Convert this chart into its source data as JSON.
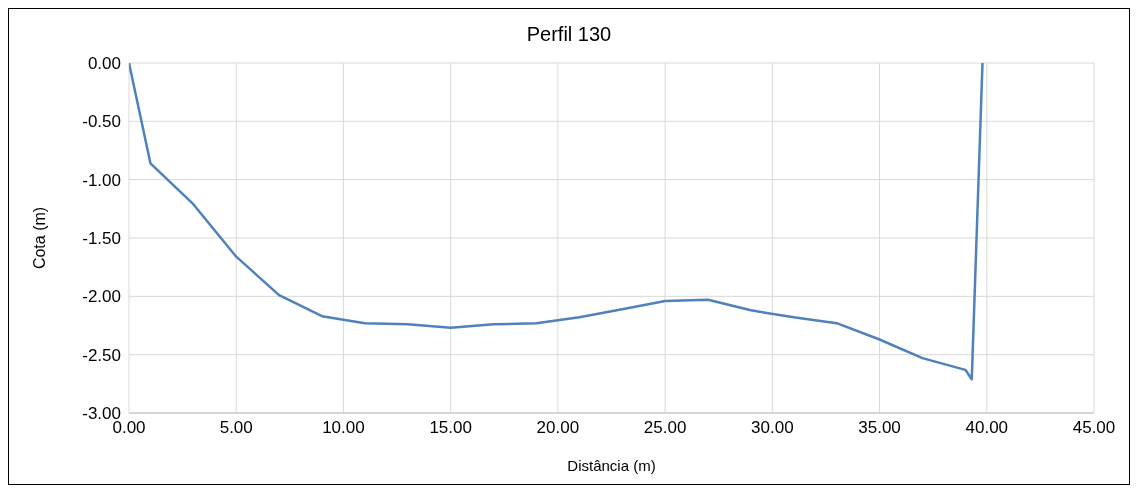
{
  "chart_data": {
    "type": "line",
    "title": "Perfil 130",
    "xlabel": "Distância (m)",
    "ylabel": "Cota (m)",
    "x": [
      0,
      1,
      3,
      5,
      7,
      9,
      11,
      13,
      15,
      17,
      19,
      21,
      23,
      25,
      27,
      29,
      31,
      33,
      35,
      37,
      39,
      39.3,
      39.8
    ],
    "series": [
      {
        "color": "#4f81bd",
        "values": [
          0,
          -0.86,
          -1.21,
          -1.66,
          -1.99,
          -2.17,
          -2.23,
          -2.24,
          -2.27,
          -2.24,
          -2.23,
          -2.18,
          -2.11,
          -2.04,
          -2.03,
          -2.12,
          -2.18,
          -2.23,
          -2.37,
          -2.53,
          -2.63,
          -2.71,
          0
        ]
      }
    ],
    "xlim": [
      0,
      45
    ],
    "xticks": [
      {
        "value": 0,
        "label": "0.00"
      },
      {
        "value": 5,
        "label": "5.00"
      },
      {
        "value": 10,
        "label": "10.00"
      },
      {
        "value": 15,
        "label": "15.00"
      },
      {
        "value": 20,
        "label": "20.00"
      },
      {
        "value": 25,
        "label": "25.00"
      },
      {
        "value": 30,
        "label": "30.00"
      },
      {
        "value": 35,
        "label": "35.00"
      },
      {
        "value": 40,
        "label": "40.00"
      },
      {
        "value": 45,
        "label": "45.00"
      }
    ],
    "ylim": [
      -3,
      0
    ],
    "yticks": [
      {
        "value": -3,
        "label": "-3.00"
      },
      {
        "value": -2.5,
        "label": "-2.50"
      },
      {
        "value": -2,
        "label": "-2.00"
      },
      {
        "value": -1.5,
        "label": "-1.50"
      },
      {
        "value": -1,
        "label": "-1.00"
      },
      {
        "value": -0.5,
        "label": "-0.50"
      },
      {
        "value": 0,
        "label": "0.00"
      }
    ],
    "grid": true,
    "marker": "none",
    "line_style": "solid"
  }
}
